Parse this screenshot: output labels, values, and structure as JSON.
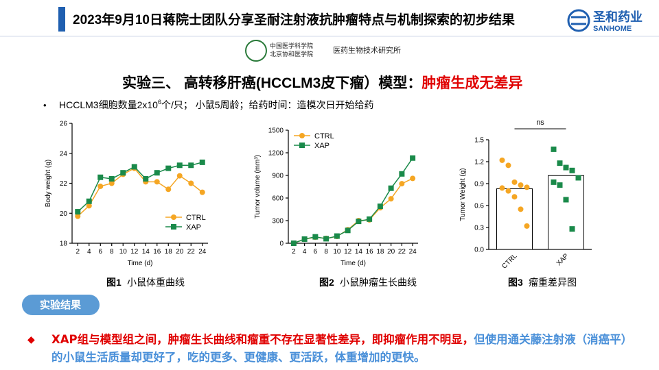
{
  "header": {
    "title": "2023年9月10日蒋院士团队分享圣耐注射液抗肿瘤特点与机制探索的初步结果",
    "brand": "圣和药业",
    "brand_en": "SANHOME"
  },
  "institute": {
    "line1": "中国医学科学院",
    "line2": "北京协和医学院",
    "name": "医药生物技术研究所"
  },
  "subtitle": {
    "prefix": "实验三、 高转移肝癌(HCCLM3皮下瘤）模型：",
    "highlight": "肿瘤生成无差异"
  },
  "bullet": {
    "text1": "HCCLM3细胞数量2x10",
    "sup": "6",
    "text2": "个/只；  小鼠5周龄；给药时间：造模次日开始给药"
  },
  "chart_data": [
    {
      "type": "line",
      "xlabel": "Time (d)",
      "ylabel": "Body weight (g)",
      "x": [
        2,
        4,
        6,
        8,
        10,
        12,
        14,
        16,
        18,
        20,
        22,
        24
      ],
      "xlim": [
        1,
        25
      ],
      "xticks": [
        2,
        4,
        6,
        8,
        10,
        12,
        14,
        16,
        18,
        20,
        22,
        24
      ],
      "ylim": [
        18,
        26
      ],
      "yticks": [
        18,
        20,
        22,
        24,
        26
      ],
      "legend": "lower right",
      "series": [
        {
          "name": "CTRL",
          "color": "#f5a623",
          "marker": "circle",
          "values": [
            19.8,
            20.5,
            21.8,
            22.0,
            22.6,
            23.0,
            22.1,
            22.1,
            21.6,
            22.5,
            22.0,
            21.4
          ]
        },
        {
          "name": "XAP",
          "color": "#1a8a4a",
          "marker": "square",
          "values": [
            20.1,
            20.8,
            22.4,
            22.3,
            22.7,
            23.1,
            22.3,
            22.7,
            23.0,
            23.2,
            23.2,
            23.4
          ]
        }
      ],
      "caption_no": "图1",
      "caption": "小鼠体重曲线"
    },
    {
      "type": "line",
      "xlabel": "Time (d)",
      "ylabel": "Tumor volume (mm³)",
      "x": [
        2,
        4,
        6,
        8,
        10,
        12,
        14,
        16,
        18,
        20,
        22,
        24
      ],
      "xlim": [
        1,
        25
      ],
      "xticks": [
        2,
        4,
        6,
        8,
        10,
        12,
        14,
        16,
        18,
        20,
        22,
        24
      ],
      "ylim": [
        0,
        1500
      ],
      "yticks": [
        0,
        300,
        600,
        900,
        1200,
        1500
      ],
      "legend": "upper left",
      "series": [
        {
          "name": "CTRL",
          "color": "#f5a623",
          "marker": "circle",
          "values": [
            0,
            55,
            80,
            65,
            90,
            180,
            300,
            310,
            470,
            590,
            790,
            860
          ]
        },
        {
          "name": "XAP",
          "color": "#1a8a4a",
          "marker": "square",
          "values": [
            0,
            55,
            85,
            60,
            95,
            170,
            290,
            320,
            490,
            730,
            920,
            1130
          ]
        }
      ],
      "caption_no": "图2",
      "caption": "小鼠肿瘤生长曲线"
    },
    {
      "type": "bar",
      "ylabel": "Tumor Weight (g)",
      "categories": [
        "CTRL",
        "XAP"
      ],
      "values": [
        0.83,
        1.01
      ],
      "color": "#ffffff",
      "ylim": [
        0,
        1.5
      ],
      "yticks": [
        {
          "value": 0,
          "label": "0.0"
        },
        0.3,
        0.6,
        0.9,
        1.2,
        1.5
      ],
      "points": [
        [
          1.22,
          1.15,
          0.92,
          0.88,
          0.85,
          0.84,
          0.8,
          0.72,
          0.55,
          0.32
        ],
        [
          1.37,
          1.18,
          1.12,
          1.08,
          0.98,
          0.92,
          0.88,
          0.68,
          0.28
        ]
      ],
      "point_colors": [
        "#f5a623",
        "#1a8a4a"
      ],
      "point_markers": [
        "circle",
        "square"
      ],
      "annotation": "ns",
      "caption_no": "图3",
      "caption": "瘤重差异图"
    }
  ],
  "results": {
    "label": "实验结果",
    "conclusion_red": "XAP组与模型组之间，肿瘤生长曲线和瘤重不存在显著性差异，即抑瘤作用不明显，",
    "conclusion_blue": "但使用通关藤注射液（消癌平）的小鼠生活质量却更好了，吃的更多、更健康、更活跃，体重增加的更快。"
  }
}
